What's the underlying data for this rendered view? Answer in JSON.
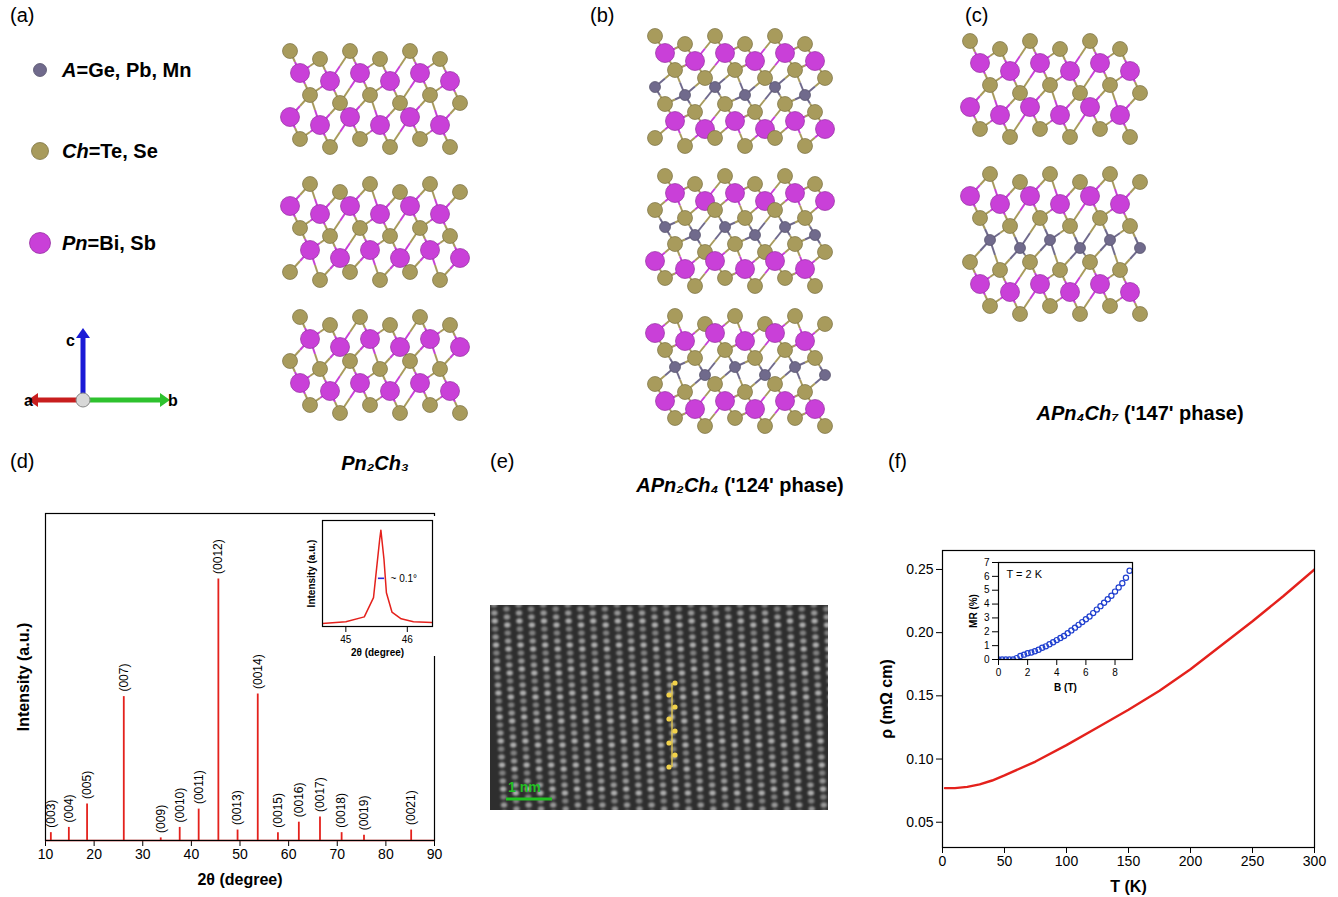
{
  "atoms": [
    {
      "label": "A=Ge, Pb, Mn",
      "color": "#706a8c"
    },
    {
      "label": "Ch=Te, Se",
      "color": "#a89b5c"
    },
    {
      "label": "Pn=Bi, Sb",
      "color": "#c940d8"
    }
  ],
  "crystal_axes": [
    "a",
    "b",
    "c"
  ],
  "structures": [
    {
      "panel": "(a)",
      "caption": "Pn₂Ch₃",
      "blocks": [
        [
          "Ch",
          "Pn",
          "Ch",
          "Pn",
          "Ch"
        ],
        [
          "Ch",
          "Pn",
          "Ch",
          "Pn",
          "Ch"
        ],
        [
          "Ch",
          "Pn",
          "Ch",
          "Pn",
          "Ch"
        ]
      ]
    },
    {
      "panel": "(b)",
      "caption": "APn₂Ch₄ ('124' phase)",
      "blocks": [
        [
          "Ch",
          "Pn",
          "Ch",
          "A",
          "Ch",
          "Pn",
          "Ch"
        ],
        [
          "Ch",
          "Pn",
          "Ch",
          "A",
          "Ch",
          "Pn",
          "Ch"
        ],
        [
          "Ch",
          "Pn",
          "Ch",
          "A",
          "Ch",
          "Pn",
          "Ch"
        ]
      ]
    },
    {
      "panel": "(c)",
      "caption": "APn₄Ch₇ ('147' phase)",
      "blocks": [
        [
          "Ch",
          "Pn",
          "Ch",
          "Pn",
          "Ch"
        ],
        [
          "Ch",
          "Pn",
          "Ch",
          "A",
          "Ch",
          "Pn",
          "Ch"
        ]
      ]
    }
  ],
  "tem": {
    "panel": "(e)",
    "scale_bar": "1 nm"
  },
  "chart_data": [
    {
      "panel": "(d)",
      "type": "spectrum",
      "color": "#e4211c",
      "x_label": "2θ (degree)",
      "y_label": "Intensity (a.u.)",
      "xlim": [
        10,
        90
      ],
      "xticks": [
        10,
        20,
        30,
        40,
        50,
        60,
        70,
        80,
        90
      ],
      "ylim": [
        0,
        125
      ],
      "tick_labels": "x",
      "x": [
        11.1,
        14.8,
        18.55,
        26.1,
        33.7,
        37.6,
        41.5,
        45.55,
        49.5,
        53.65,
        57.8,
        62.1,
        66.45,
        70.9,
        75.5,
        85.2
      ],
      "values": [
        3,
        5,
        14,
        55,
        1,
        5,
        12,
        100,
        4,
        56,
        3,
        7,
        9,
        3,
        2,
        4
      ],
      "peak_labels": [
        "(003)",
        "(004)",
        "(005)",
        "(007)",
        "(009)",
        "(0010)",
        "(0011)",
        "(0012)",
        "(0013)",
        "(0014)",
        "(0015)",
        "(0016)",
        "(0017)",
        "(0018)",
        "(0019)",
        "(0021)"
      ]
    },
    {
      "type": "line",
      "color": "#e4211c",
      "x_label": "2θ (degree)",
      "y_label": "Intensity (a.u.)",
      "xlim": [
        44.62,
        46.41
      ],
      "xticks": [
        45,
        46
      ],
      "ylim": [
        0,
        1.1
      ],
      "tick_labels": "x",
      "x": [
        44.62,
        45.0,
        45.3,
        45.45,
        45.5,
        45.55,
        45.57,
        45.62,
        45.66,
        45.75,
        45.9,
        46.1,
        46.41
      ],
      "values": [
        0.03,
        0.05,
        0.1,
        0.3,
        0.6,
        0.9,
        1.0,
        0.7,
        0.35,
        0.15,
        0.08,
        0.05,
        0.04
      ],
      "annotations": [
        {
          "text": "~ 0.1°",
          "x1": 45.53,
          "x2": 45.63,
          "y": 0.5,
          "color": "#2b2bdc"
        }
      ]
    },
    {
      "panel": "(f)",
      "type": "line",
      "color": "#e4211c",
      "x_label": "T (K)",
      "y_label": "ρ (mΩ cm)",
      "xlim": [
        0,
        300
      ],
      "xticks": [
        0,
        50,
        100,
        150,
        200,
        250,
        300
      ],
      "ylim": [
        0.03,
        0.265
      ],
      "yticks": [
        0.05,
        {
          "value": 0.1,
          "label": "0.10"
        },
        0.15,
        {
          "value": 0.2,
          "label": "0.20"
        },
        0.25
      ],
      "x": [
        2,
        10,
        20,
        30,
        40,
        50,
        75,
        100,
        125,
        150,
        175,
        200,
        225,
        250,
        275,
        300
      ],
      "values": [
        0.077,
        0.077,
        0.078,
        0.08,
        0.083,
        0.087,
        0.098,
        0.111,
        0.125,
        0.139,
        0.154,
        0.171,
        0.19,
        0.209,
        0.229,
        0.25
      ]
    },
    {
      "type": "scatter",
      "marker": "circle-open",
      "color": "#1f3fcf",
      "x_label": "B (T)",
      "y_label": "MR (%)",
      "xlim": [
        0,
        9.2
      ],
      "xticks": [
        0,
        2,
        4,
        6,
        8
      ],
      "ylim": [
        0,
        7
      ],
      "yticks": [
        0,
        1,
        2,
        3,
        4,
        5,
        6,
        7
      ],
      "x": [
        0,
        0.25,
        0.5,
        0.75,
        1,
        1.25,
        1.5,
        1.75,
        2,
        2.25,
        2.5,
        2.75,
        3,
        3.25,
        3.5,
        3.75,
        4,
        4.25,
        4.5,
        4.75,
        5,
        5.25,
        5.5,
        5.75,
        6,
        6.25,
        6.5,
        6.75,
        7,
        7.25,
        7.5,
        7.75,
        8,
        8.25,
        8.5,
        8.75,
        9
      ],
      "values": [
        0,
        0,
        0,
        0,
        0,
        0.1,
        0.25,
        0.35,
        0.45,
        0.5,
        0.6,
        0.7,
        0.85,
        0.95,
        1.1,
        1.25,
        1.4,
        1.55,
        1.7,
        1.9,
        2.1,
        2.3,
        2.5,
        2.7,
        2.9,
        3.1,
        3.35,
        3.6,
        3.85,
        4.1,
        4.35,
        4.6,
        4.9,
        5.2,
        5.5,
        5.9,
        6.4
      ],
      "annotations": [
        {
          "text": "T = 2 K"
        }
      ]
    }
  ]
}
